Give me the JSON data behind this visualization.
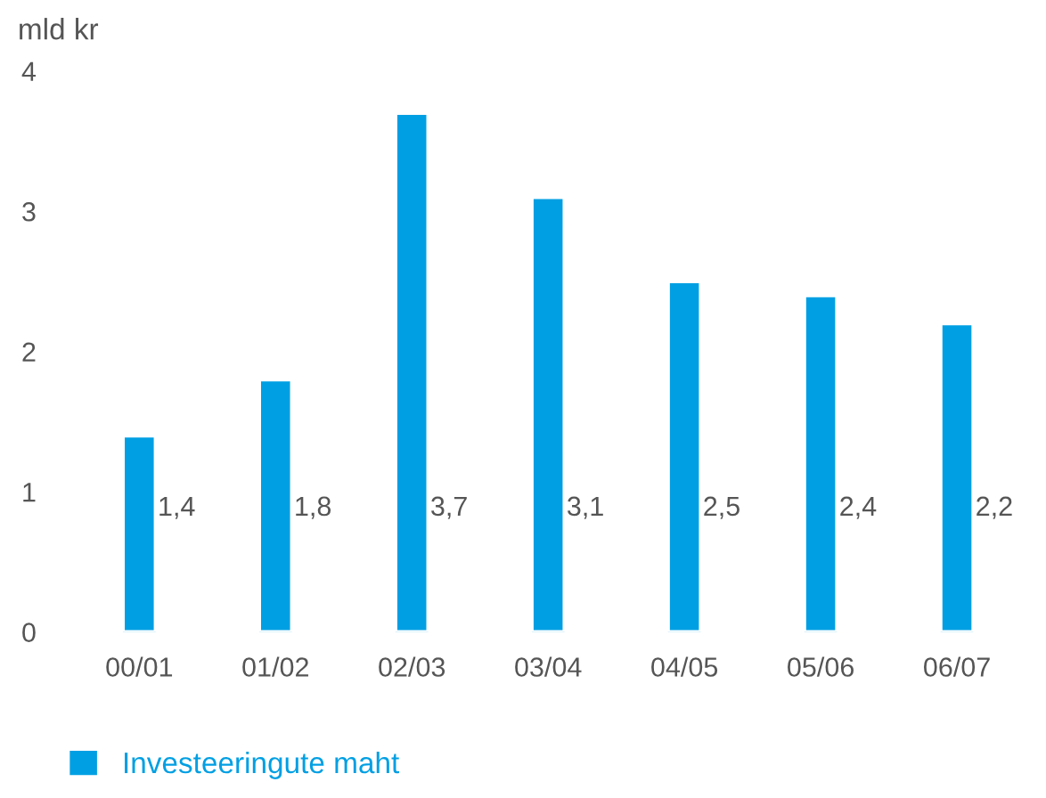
{
  "chart_data": {
    "type": "bar",
    "ylabel": "mld kr",
    "categories": [
      "00/01",
      "01/02",
      "02/03",
      "03/04",
      "04/05",
      "05/06",
      "06/07"
    ],
    "series": [
      {
        "name": "Investeeringute maht",
        "color": "#009fe3",
        "values": [
          1.4,
          1.8,
          3.7,
          3.1,
          2.5,
          2.4,
          2.2
        ],
        "value_labels": [
          "1,4",
          "1,8",
          "3,7",
          "3,1",
          "2,5",
          "2,4",
          "2,2"
        ]
      }
    ],
    "ylim": [
      0,
      4
    ],
    "yticks": [
      0,
      1,
      2,
      3,
      4
    ],
    "grid": false,
    "legend": "bottom left"
  }
}
